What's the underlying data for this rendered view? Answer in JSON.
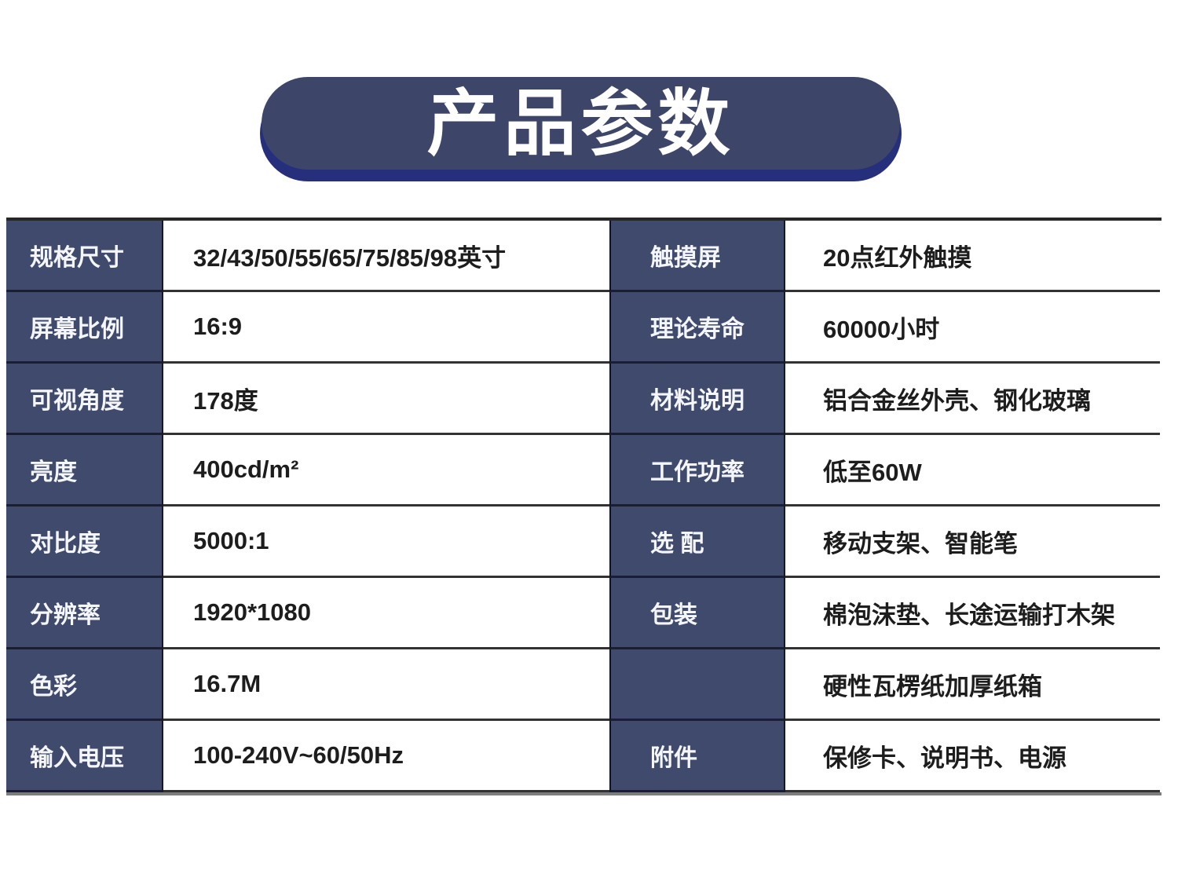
{
  "page": {
    "title": "产品参数"
  },
  "colors": {
    "navy": "#3f4a6d",
    "pill": "#3d4569",
    "pill_shadow": "#262f7b",
    "line": "#333333",
    "bottom_line": "#7d7d7d"
  },
  "spec_table": {
    "rows": [
      {
        "l_label": "规格尺寸",
        "l_value": "32/43/50/55/65/75/85/98英寸",
        "r_label": "触摸屏",
        "r_value": "20点红外触摸"
      },
      {
        "l_label": "屏幕比例",
        "l_value": "16:9",
        "r_label": "理论寿命",
        "r_value": "60000小时"
      },
      {
        "l_label": "可视角度",
        "l_value": "178度",
        "r_label": "材料说明",
        "r_value": "铝合金丝外壳、钢化玻璃"
      },
      {
        "l_label": "亮度",
        "l_value": "400cd/m²",
        "r_label": "工作功率",
        "r_value": "低至60W"
      },
      {
        "l_label": "对比度",
        "l_value": "5000:1",
        "r_label": "选 配",
        "r_value": "移动支架、智能笔"
      },
      {
        "l_label": "分辨率",
        "l_value": "1920*1080",
        "r_label": "包装",
        "r_value": "棉泡沫垫、长途运输打木架"
      },
      {
        "l_label": "色彩",
        "l_value": "16.7M",
        "r_label": "",
        "r_value": "硬性瓦楞纸加厚纸箱"
      },
      {
        "l_label": "输入电压",
        "l_value": "100-240V~60/50Hz",
        "r_label": "附件",
        "r_value": "保修卡、说明书、电源"
      }
    ]
  }
}
